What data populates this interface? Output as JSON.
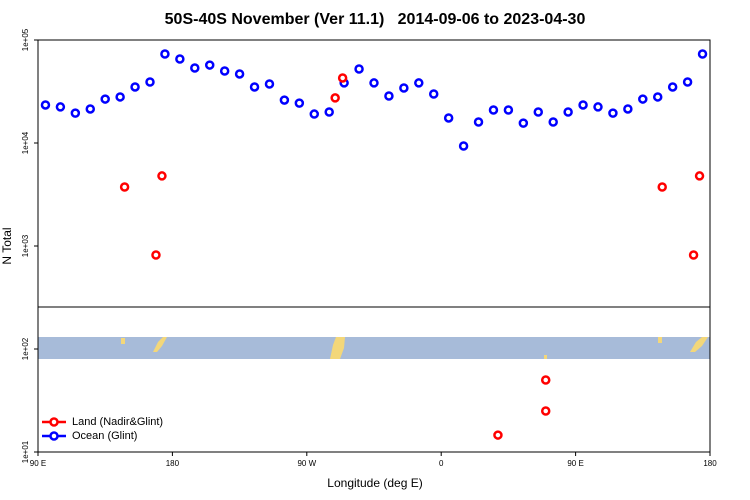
{
  "chart_data": {
    "type": "scatter",
    "title": "50S-40S November (Ver 11.1)   2014-09-06 to 2023-04-30",
    "x_label": "Longitude (deg E)",
    "y_label": "N Total",
    "xlim": [
      90,
      540
    ],
    "xticks": [
      {
        "value": 90,
        "label": "90 E"
      },
      {
        "value": 180,
        "label": "180"
      },
      {
        "value": 270,
        "label": "90 W"
      },
      {
        "value": 360,
        "label": "0"
      },
      {
        "value": 450,
        "label": "90 E"
      },
      {
        "value": 540,
        "label": "180"
      }
    ],
    "ylim": [
      10,
      100000
    ],
    "log_y": true,
    "yticks": [
      {
        "value": 10,
        "label": "1e+01"
      },
      {
        "value": 100,
        "label": "1e+02"
      },
      {
        "value": 1000,
        "label": "1e+03"
      },
      {
        "value": 10000,
        "label": "1e+04"
      },
      {
        "value": 100000,
        "label": "1e+05"
      }
    ],
    "legend": "bottom left",
    "series": [
      {
        "name": "Land (Nadir&Glint)",
        "color": "#ff0000",
        "x": [
          148,
          169,
          173,
          289,
          294,
          398,
          430,
          430,
          508,
          529,
          533
        ],
        "values": [
          3740,
          818,
          4790,
          27400,
          42800,
          14.6,
          50,
          25,
          3740,
          818,
          4790
        ]
      },
      {
        "name": "Ocean (Glint)",
        "color": "#0000ff",
        "x": [
          95,
          105,
          115,
          125,
          135,
          145,
          155,
          165,
          175,
          185,
          195,
          205,
          215,
          225,
          235,
          245,
          255,
          265,
          275,
          285,
          295,
          305,
          315,
          325,
          335,
          345,
          355,
          365,
          375,
          385,
          395,
          405,
          415,
          425,
          435,
          445,
          455,
          465,
          475,
          485,
          495,
          505,
          515,
          525,
          535
        ],
        "values": [
          23400,
          22400,
          19500,
          21400,
          26700,
          28000,
          35000,
          39100,
          73100,
          65400,
          53500,
          57100,
          50000,
          46800,
          35000,
          37400,
          26100,
          24400,
          19100,
          20000,
          38300,
          52300,
          38300,
          28600,
          34200,
          38300,
          29900,
          17500,
          9350,
          16000,
          20900,
          20900,
          15600,
          20000,
          16000,
          20000,
          23400,
          22400,
          19500,
          21400,
          26700,
          28000,
          35000,
          39100,
          73100
        ]
      }
    ]
  }
}
